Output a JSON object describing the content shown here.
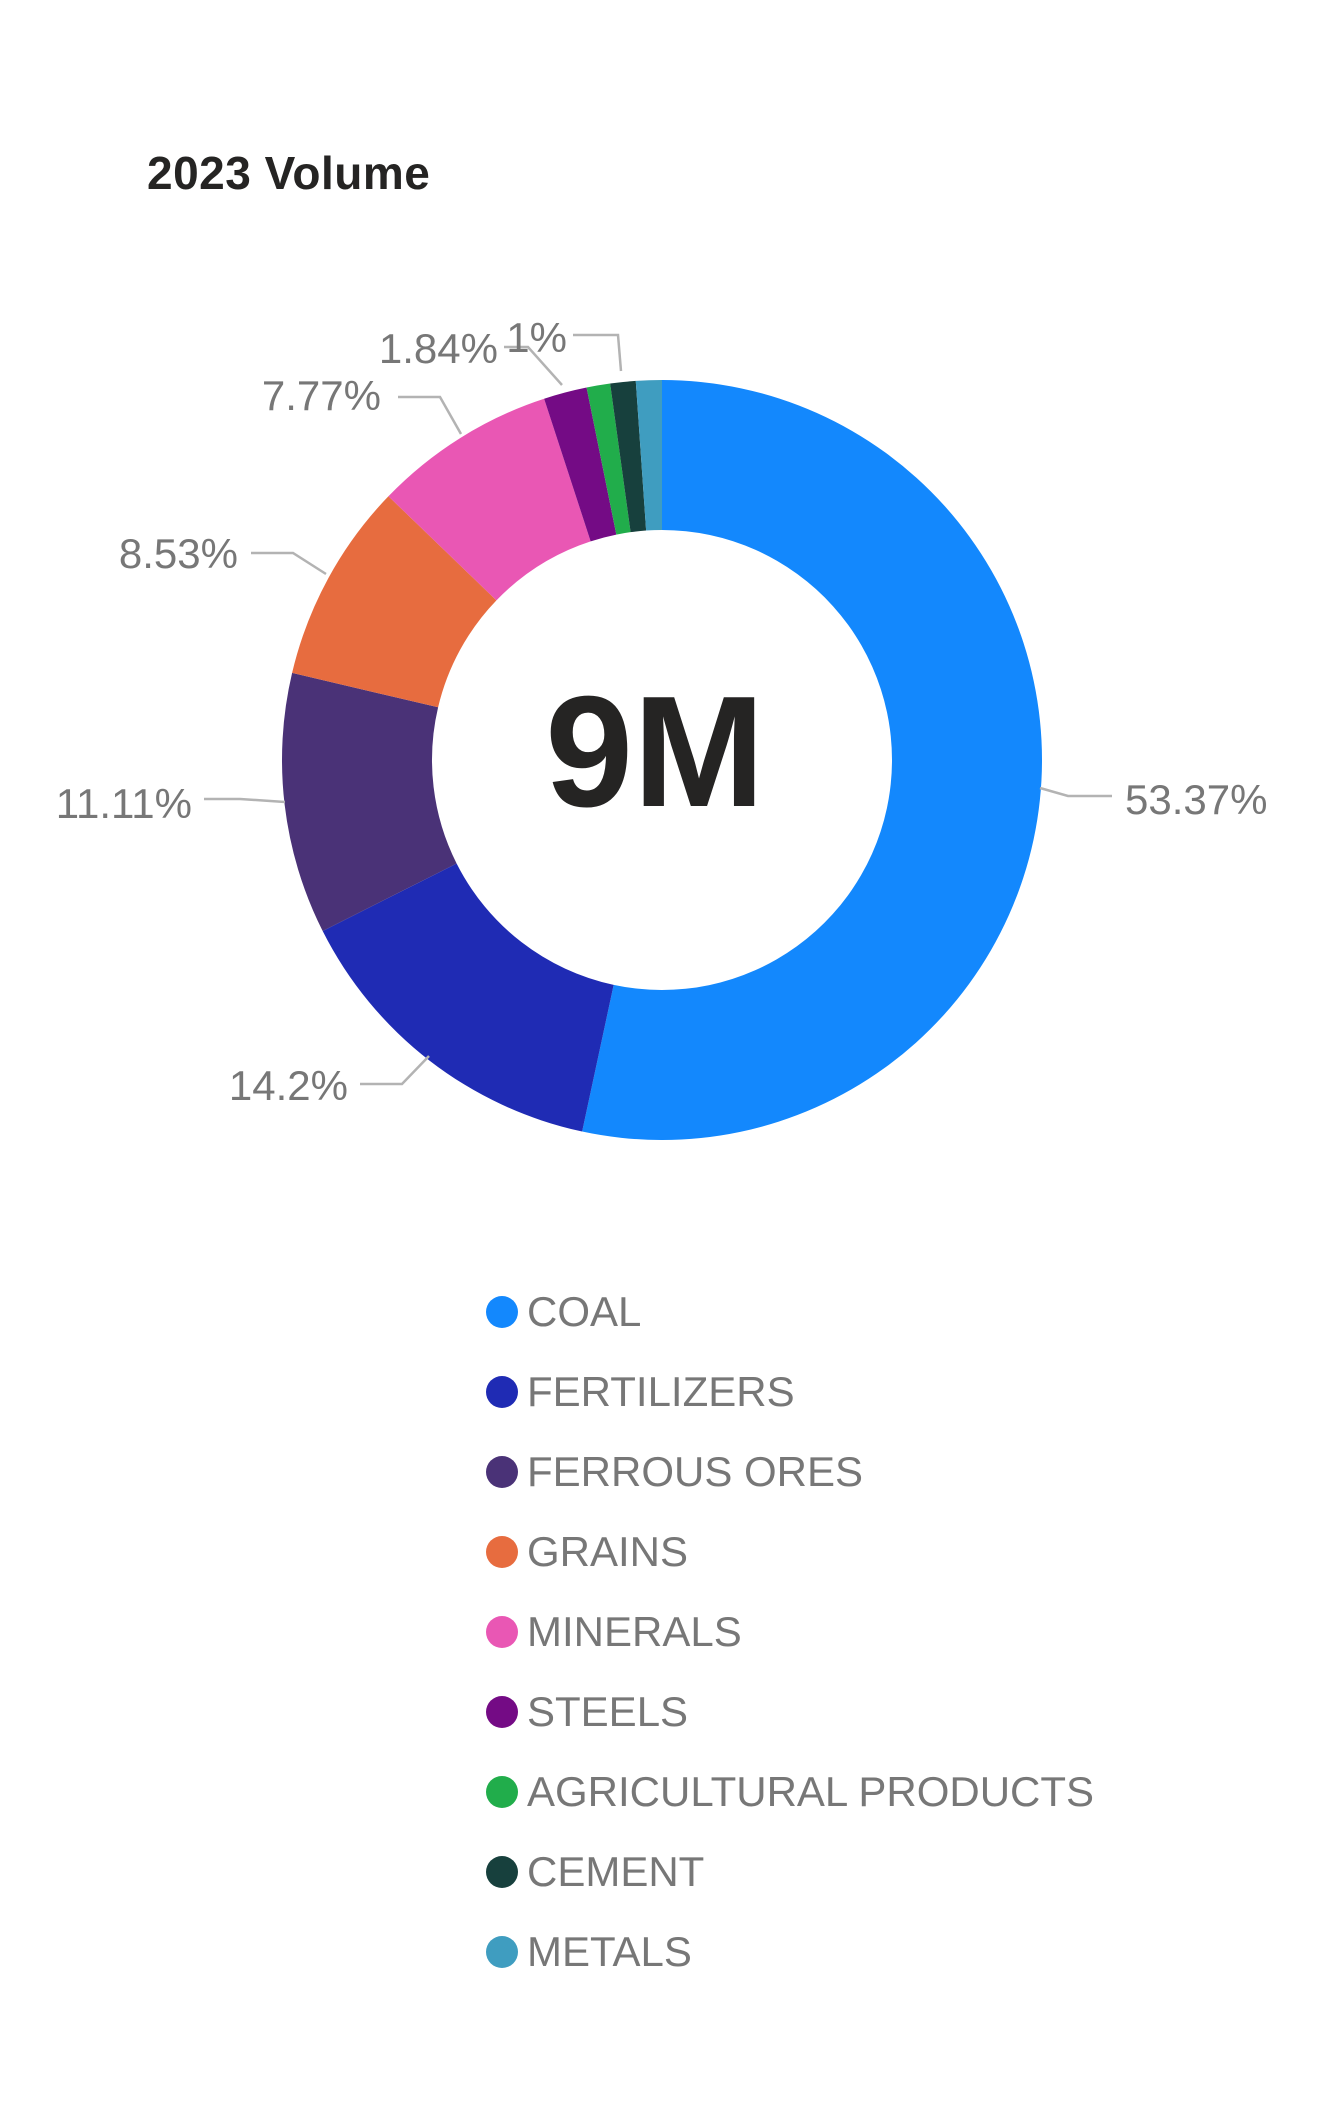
{
  "chart_data": {
    "type": "pie",
    "subtype": "donut",
    "title": "2023 Volume",
    "center_label": "9M",
    "legend_position": "bottom-center",
    "title_color": "#252423",
    "label_color": "#777777",
    "leader_line_color": "#b3b3b3",
    "series": [
      {
        "name": "COAL",
        "percent": 53.37,
        "label": "53.37%",
        "color": "#1388fd"
      },
      {
        "name": "FERTILIZERS",
        "percent": 14.2,
        "label": "14.2%",
        "color": "#1f2bb4"
      },
      {
        "name": "FERROUS ORES",
        "percent": 11.11,
        "label": "11.11%",
        "color": "#4a3277"
      },
      {
        "name": "GRAINS",
        "percent": 8.53,
        "label": "8.53%",
        "color": "#e76c3f"
      },
      {
        "name": "MINERALS",
        "percent": 7.77,
        "label": "7.77%",
        "color": "#e957b4"
      },
      {
        "name": "STEELS",
        "percent": 1.84,
        "label": "1.84%",
        "color": "#740b85"
      },
      {
        "name": "AGRICULTURAL PRODUCTS",
        "percent": 1.0,
        "label": "1%",
        "color": "#21ad4b"
      },
      {
        "name": "CEMENT",
        "percent": 1.08,
        "label": "",
        "color": "#17403d"
      },
      {
        "name": "METALS",
        "percent": 1.1,
        "label": "",
        "color": "#3f9dc0"
      }
    ]
  }
}
